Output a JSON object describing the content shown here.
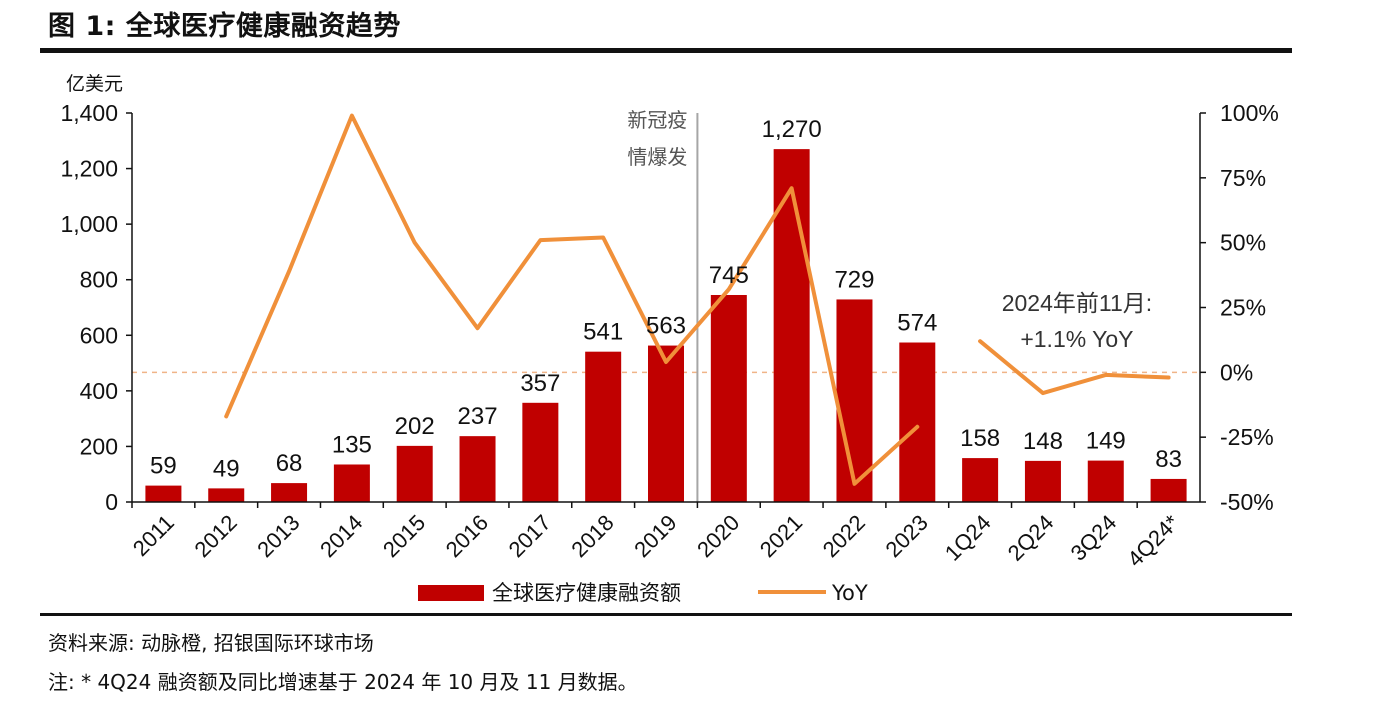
{
  "title": "图 1: 全球医疗健康融资趋势",
  "source": "资料来源: 动脉橙, 招银国际环球市场",
  "footnote": "注: * 4Q24 融资额及同比增速基于 2024 年 10 月及 11 月数据。",
  "colors": {
    "bar": "#c00000",
    "line": "#f0903a",
    "zero_line": "#f0b488",
    "divider": "#a6a6a6"
  },
  "chart_data": {
    "type": "bar",
    "categories": [
      "2011",
      "2012",
      "2013",
      "2014",
      "2015",
      "2016",
      "2017",
      "2018",
      "2019",
      "2020",
      "2021",
      "2022",
      "2023",
      "1Q24",
      "2Q24",
      "3Q24",
      "4Q24*"
    ],
    "ylabel": "亿美元",
    "ylim": [
      0,
      1400
    ],
    "yticks": [
      "0",
      "200",
      "400",
      "600",
      "800",
      "1,000",
      "1,200",
      "1,400"
    ],
    "y2lim": [
      -50,
      100
    ],
    "y2ticks": [
      "-50%",
      "-25%",
      "0%",
      "25%",
      "50%",
      "75%",
      "100%"
    ],
    "series": [
      {
        "name": "全球医疗健康融资额",
        "type": "bar",
        "values": [
          59,
          49,
          68,
          135,
          202,
          237,
          357,
          541,
          563,
          745,
          1270,
          729,
          574,
          158,
          148,
          149,
          83
        ],
        "labels": [
          "59",
          "49",
          "68",
          "135",
          "202",
          "237",
          "357",
          "541",
          "563",
          "745",
          "1,270",
          "729",
          "574",
          "158",
          "148",
          "149",
          "83"
        ]
      },
      {
        "name": "YoY",
        "type": "line",
        "axis": "right",
        "unit": "%",
        "segments": [
          {
            "x": [
              "2012",
              "2013",
              "2014",
              "2015",
              "2016",
              "2017",
              "2018",
              "2019",
              "2020",
              "2021",
              "2022",
              "2023"
            ],
            "values": [
              -17,
              39,
              99,
              50,
              17,
              51,
              52,
              4,
              32,
              71,
              -43,
              -21
            ]
          },
          {
            "x": [
              "1Q24",
              "2Q24",
              "3Q24",
              "4Q24*"
            ],
            "values": [
              12,
              -8,
              -1,
              -2
            ]
          }
        ]
      }
    ],
    "annotations": [
      {
        "text_lines": [
          "新冠疫",
          "情爆发"
        ],
        "between": [
          "2019",
          "2020"
        ]
      },
      {
        "text_lines": [
          "2024年前11月:",
          "+1.1% YoY"
        ],
        "near": "2Q24"
      }
    ],
    "legend": "bottom"
  }
}
